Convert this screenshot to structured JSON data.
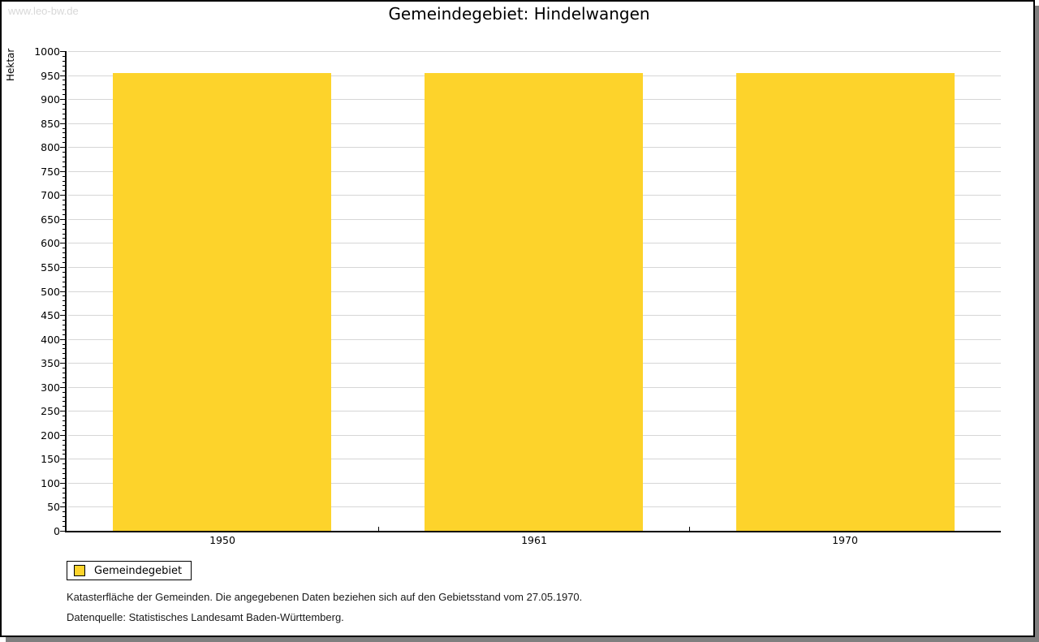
{
  "watermark": "www.leo-bw.de",
  "title": "Gemeindegebiet: Hindelwangen",
  "chart_data": {
    "type": "bar",
    "title": "Gemeindegebiet: Hindelwangen",
    "categories": [
      "1950",
      "1961",
      "1970"
    ],
    "series": [
      {
        "name": "Gemeindegebiet",
        "values": [
          955,
          955,
          955
        ]
      }
    ],
    "xlabel": "",
    "ylabel": "Hektar",
    "ylim": [
      0,
      1000
    ],
    "ytick_major": 50,
    "ytick_minor": 10,
    "grid": true,
    "legend_position": "bottom-left",
    "bar_color": "#fdd32b",
    "grid_color": "#d6d6d6",
    "axis_color": "#000000"
  },
  "legend": {
    "items": [
      {
        "label": "Gemeindegebiet",
        "color": "#fdd32b"
      }
    ]
  },
  "footer": {
    "line1": "Katasterfläche der Gemeinden. Die angegebenen Daten beziehen sich auf den Gebietsstand vom 27.05.1970.",
    "line2": "Datenquelle: Statistisches Landesamt Baden-Württemberg."
  },
  "colors": {
    "watermark": "#d8d8d8",
    "shadow": "#7f7f7f",
    "background": "#ffffff"
  }
}
